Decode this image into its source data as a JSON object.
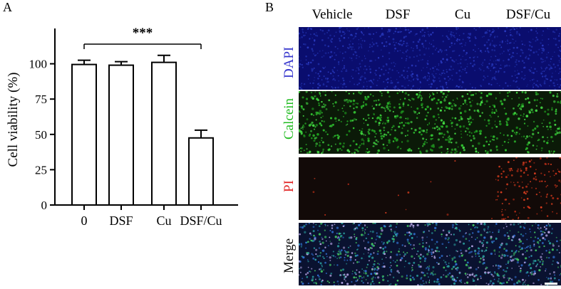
{
  "panel_a": {
    "letter": "A",
    "chart_data": {
      "type": "bar",
      "categories": [
        "0",
        "DSF",
        "Cu",
        "DSF/Cu"
      ],
      "values": [
        99.5,
        99.0,
        101.0,
        47.5
      ],
      "errors": [
        3.0,
        2.5,
        5.0,
        5.5
      ],
      "ylabel": "Cell viability (%)",
      "xlabel": "",
      "ylim": [
        0,
        125
      ],
      "yticks": [
        "0",
        "25",
        "50",
        "75",
        "100"
      ],
      "significance": {
        "text": "***",
        "from": "0",
        "to": "DSF/Cu"
      },
      "bar_fill": "#ffffff",
      "bar_stroke": "#000000"
    }
  },
  "panel_b": {
    "letter": "B",
    "columns": [
      "Vehicle",
      "DSF",
      "Cu",
      "DSF/Cu"
    ],
    "rows": [
      {
        "label": "DAPI",
        "color": "#3333cc",
        "bg": "#0a0d6e"
      },
      {
        "label": "Calcein",
        "color": "#22bb22",
        "bg": "#0b1a08"
      },
      {
        "label": "PI",
        "color": "#e02020",
        "bg": "#120a08"
      },
      {
        "label": "Merge",
        "color": "#111111",
        "bg": "#0a1230"
      }
    ]
  }
}
